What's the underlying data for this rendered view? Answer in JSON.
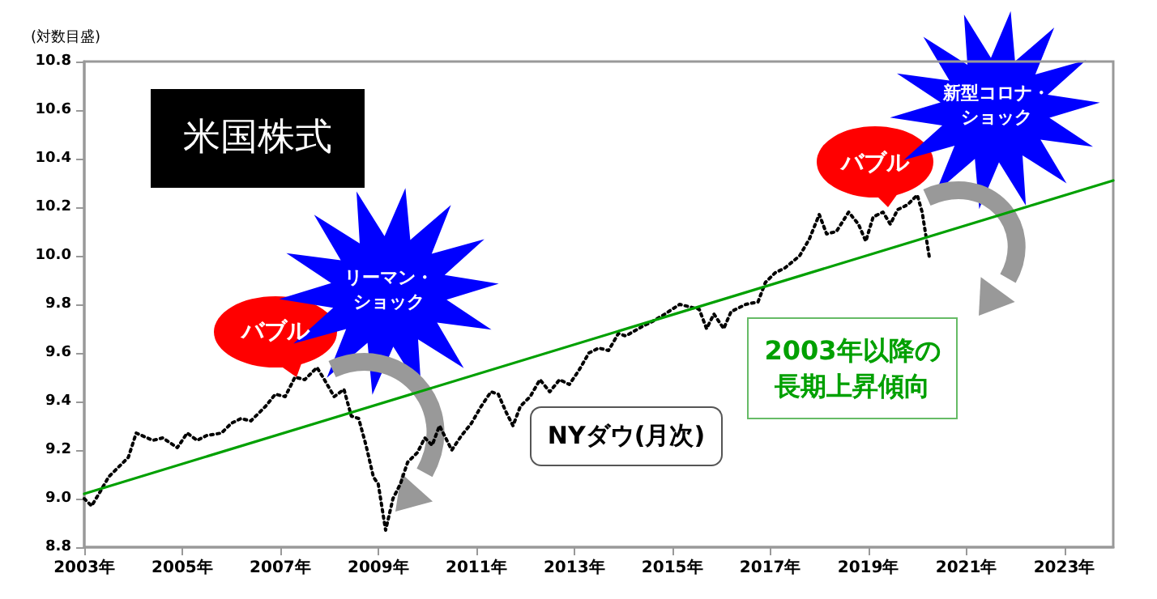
{
  "chart_data": {
    "type": "line",
    "ylabel": "(対数目盛)",
    "annotations": [
      "米国株式",
      "バブル",
      "リーマン・ショック",
      "バブル",
      "新型コロナ・ショック",
      "2003年以降の長期上昇傾向",
      "NYダウ(月次)"
    ],
    "xlim": [
      2003,
      2024
    ],
    "xticks": [
      {
        "value": 2003,
        "label": "2003年"
      },
      {
        "value": 2005,
        "label": "2005年"
      },
      {
        "value": 2007,
        "label": "2007年"
      },
      {
        "value": 2009,
        "label": "2009年"
      },
      {
        "value": 2011,
        "label": "2011年"
      },
      {
        "value": 2013,
        "label": "2013年"
      },
      {
        "value": 2015,
        "label": "2015年"
      },
      {
        "value": 2017,
        "label": "2017年"
      },
      {
        "value": 2019,
        "label": "2019年"
      },
      {
        "value": 2021,
        "label": "2021年"
      },
      {
        "value": 2023,
        "label": "2023年"
      }
    ],
    "ylim": [
      8.8,
      10.8
    ],
    "yticks": [
      8.8,
      {
        "value": 9,
        "label": "9.0"
      },
      9.2,
      9.4,
      9.6,
      9.8,
      {
        "value": 10,
        "label": "10.0"
      },
      10.2,
      10.4,
      10.6,
      10.8
    ],
    "marker": "none",
    "series": [
      {
        "color": "#000000",
        "line_style": "dotted",
        "x": [
          2003.0,
          2003.15,
          2003.3,
          2003.5,
          2003.7,
          2003.9,
          2004.06,
          2004.4,
          2004.6,
          2004.9,
          2005.1,
          2005.3,
          2005.5,
          2005.8,
          2006.0,
          2006.2,
          2006.4,
          2006.7,
          2006.9,
          2007.1,
          2007.3,
          2007.5,
          2007.75,
          2007.9,
          2008.1,
          2008.3,
          2008.45,
          2008.6,
          2008.75,
          2008.9,
          2009.0,
          2009.15,
          2009.3,
          2009.45,
          2009.6,
          2009.8,
          2009.95,
          2010.1,
          2010.25,
          2010.4,
          2010.5,
          2010.7,
          2010.9,
          2011.1,
          2011.3,
          2011.45,
          2011.6,
          2011.75,
          2011.9,
          2012.1,
          2012.3,
          2012.5,
          2012.7,
          2012.9,
          2013.1,
          2013.3,
          2013.5,
          2013.7,
          2013.9,
          2014.05,
          2014.4,
          2014.6,
          2014.85,
          2015.0,
          2015.15,
          2015.35,
          2015.55,
          2015.7,
          2015.85,
          2016.05,
          2016.2,
          2016.5,
          2016.75,
          2016.9,
          2017.1,
          2017.3,
          2017.6,
          2017.8,
          2018.0,
          2018.15,
          2018.35,
          2018.6,
          2018.8,
          2018.95,
          2019.1,
          2019.3,
          2019.45,
          2019.6,
          2019.8,
          2020.0,
          2020.1,
          2020.25
        ],
        "values": [
          9.0,
          8.97,
          9.02,
          9.09,
          9.13,
          9.17,
          9.27,
          9.24,
          9.25,
          9.21,
          9.27,
          9.24,
          9.26,
          9.27,
          9.31,
          9.33,
          9.32,
          9.38,
          9.43,
          9.42,
          9.5,
          9.49,
          9.54,
          9.49,
          9.42,
          9.45,
          9.34,
          9.33,
          9.22,
          9.09,
          9.06,
          8.87,
          9.0,
          9.06,
          9.15,
          9.19,
          9.25,
          9.22,
          9.3,
          9.24,
          9.2,
          9.26,
          9.31,
          9.38,
          9.44,
          9.43,
          9.36,
          9.3,
          9.38,
          9.42,
          9.49,
          9.44,
          9.49,
          9.47,
          9.53,
          9.6,
          9.62,
          9.61,
          9.68,
          9.67,
          9.71,
          9.73,
          9.76,
          9.78,
          9.8,
          9.79,
          9.78,
          9.7,
          9.76,
          9.7,
          9.77,
          9.8,
          9.81,
          9.89,
          9.93,
          9.95,
          10.0,
          10.07,
          10.17,
          10.09,
          10.1,
          10.18,
          10.13,
          10.06,
          10.16,
          10.18,
          10.13,
          10.19,
          10.21,
          10.25,
          10.18,
          9.99
        ]
      },
      {
        "type": "line",
        "color": "#00a000",
        "line_style": "solid",
        "x": [
          2003,
          2024
        ],
        "values": [
          9.02,
          10.31
        ]
      }
    ]
  }
}
